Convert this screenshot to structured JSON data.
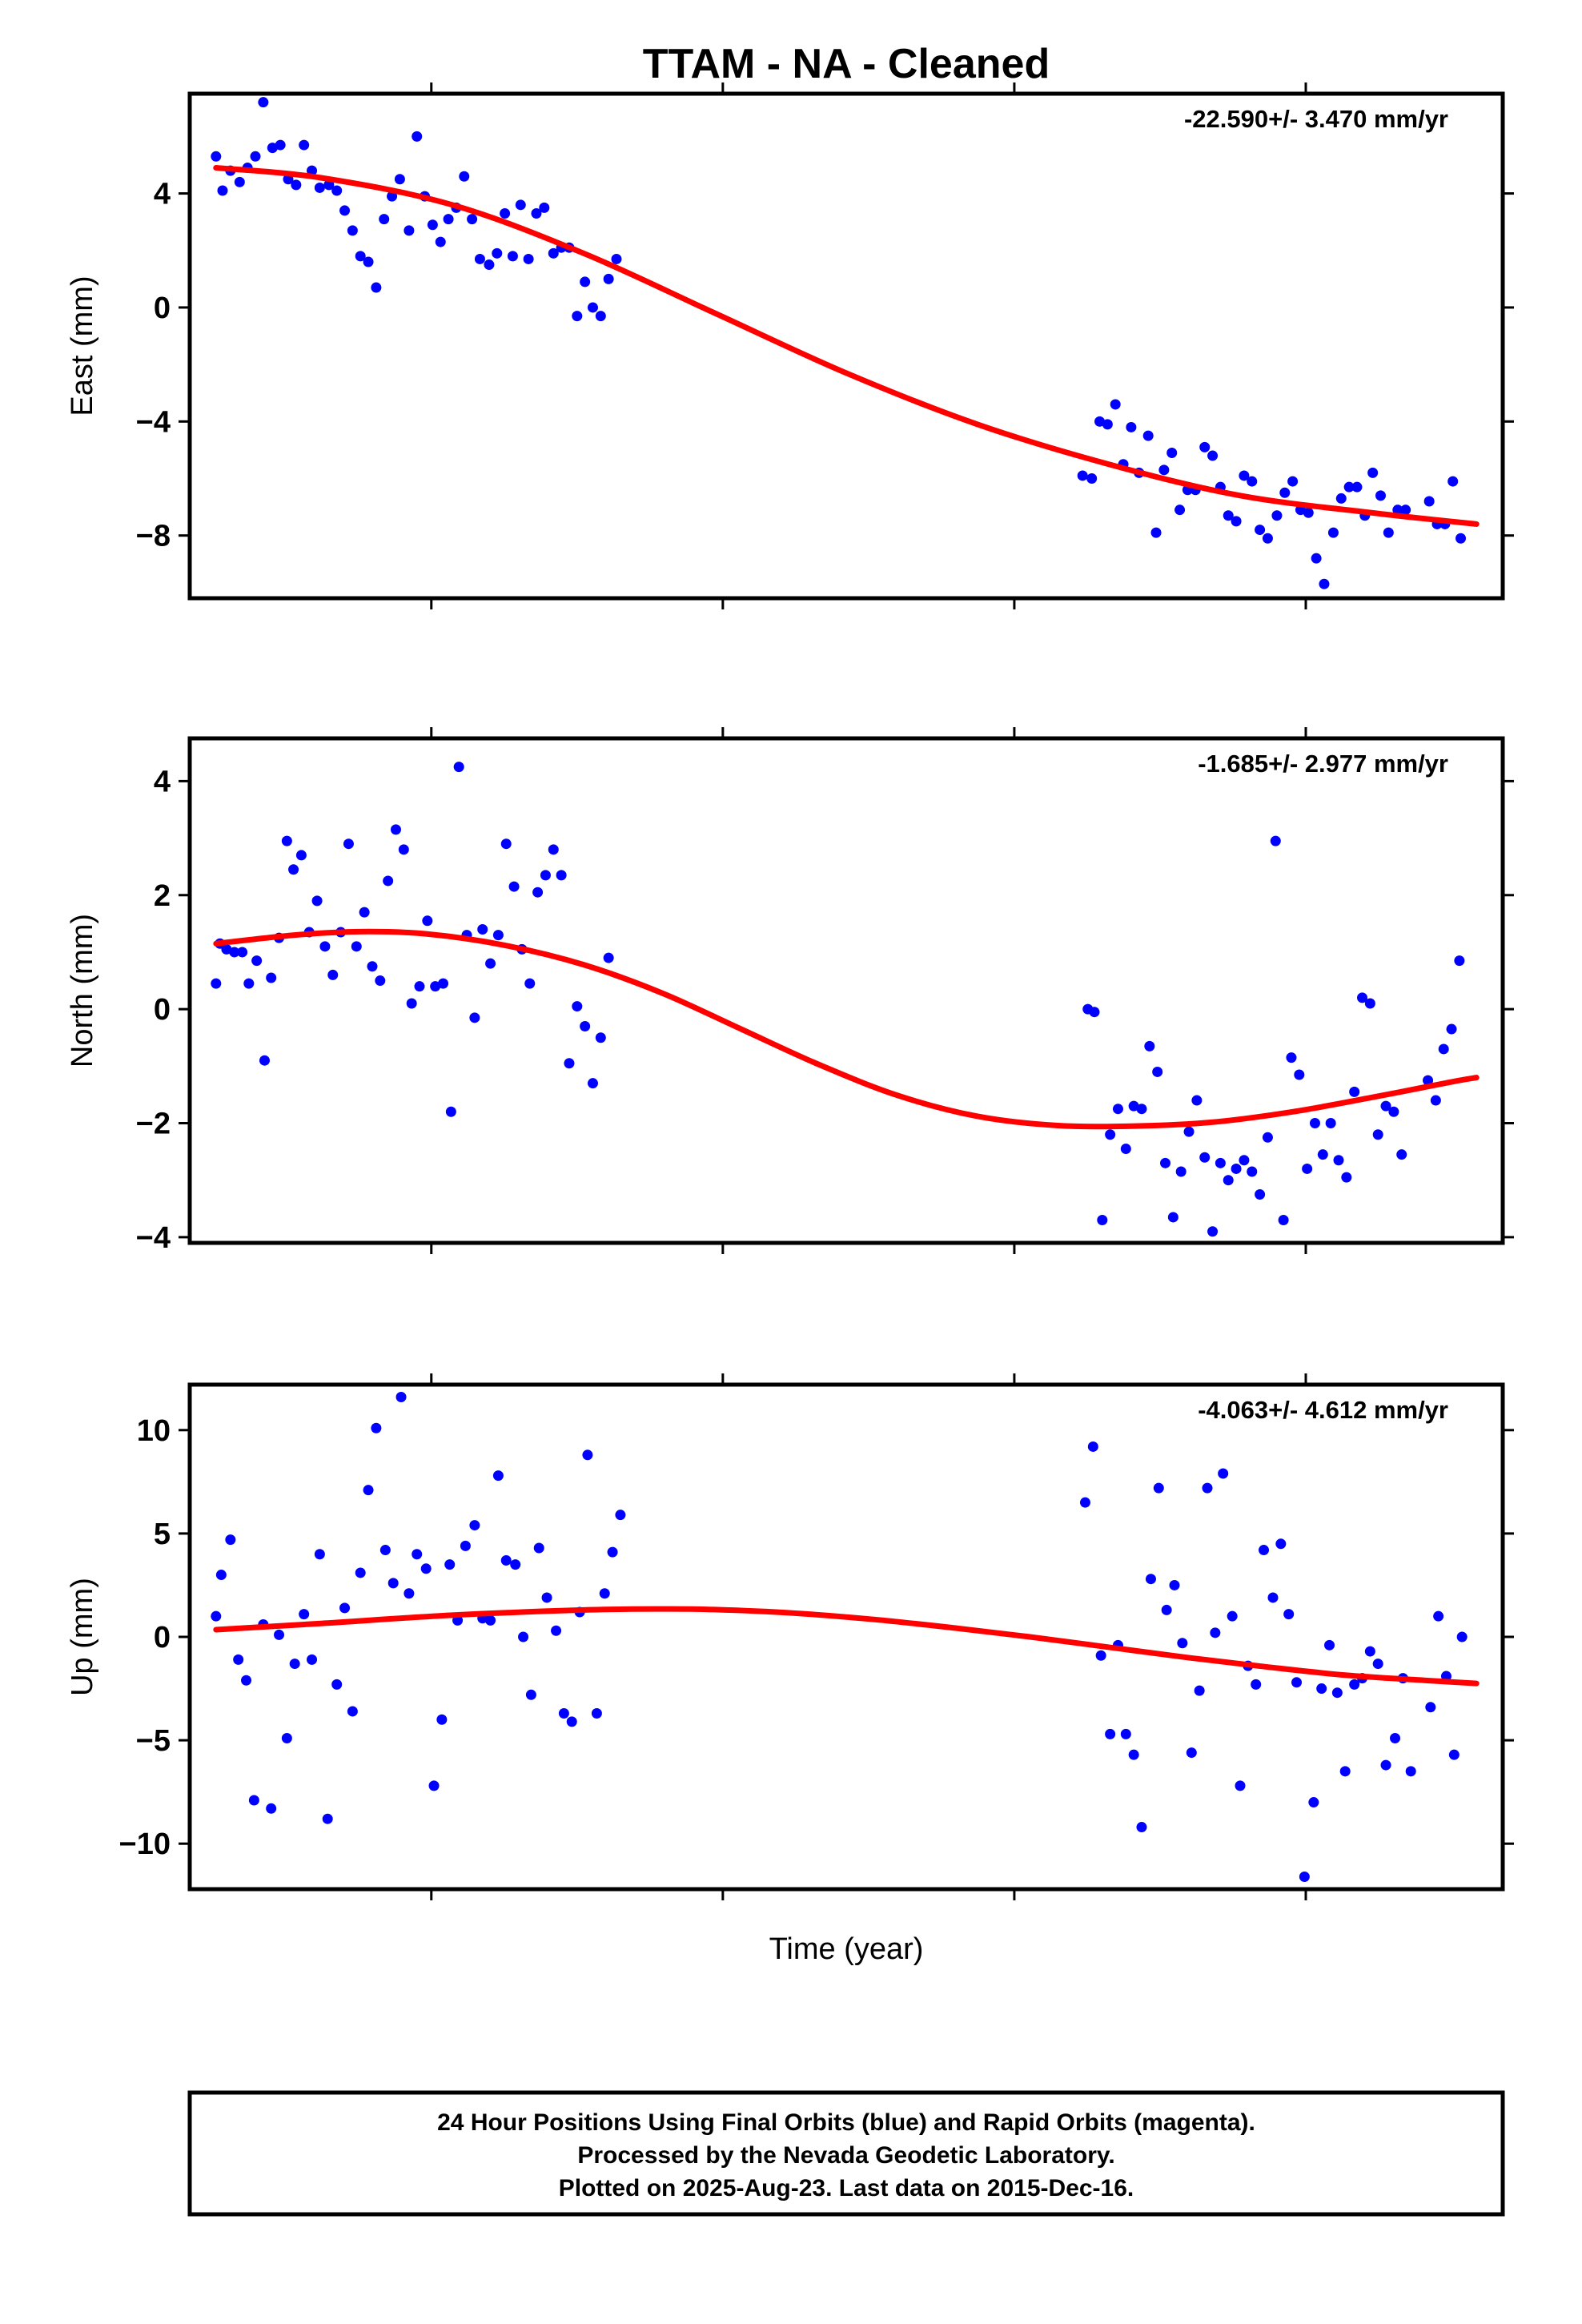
{
  "title": "TTAM  - NA - Cleaned",
  "xlabel": "Time (year)",
  "footer": {
    "line1": "24 Hour Positions Using Final Orbits (blue) and Rapid Orbits (magenta).",
    "line2": "Processed by the Nevada Geodetic Laboratory.",
    "line3": "Plotted on 2025-Aug-23. Last data on 2015-Dec-16."
  },
  "colors": {
    "data_points": "#0000ff",
    "fit_line": "#ff0000",
    "frame": "#000000"
  },
  "chart_data": [
    {
      "type": "scatter",
      "name": "east",
      "ylabel": "East (mm)",
      "rate": "-22.590+/- 3.470 mm/yr",
      "ylim": [
        -10.2,
        7.5
      ],
      "yticks": [
        4,
        0,
        -4,
        -8
      ],
      "ytick_labels": [
        "4",
        "0",
        "−4",
        "−8"
      ],
      "xlim": [
        0,
        100
      ],
      "xticks": [
        18.4,
        40.6,
        62.8,
        85
      ],
      "grid": false,
      "fit": [
        [
          2,
          4.9
        ],
        [
          10,
          4.55
        ],
        [
          20,
          3.6
        ],
        [
          30,
          1.9
        ],
        [
          40,
          -0.2
        ],
        [
          50,
          -2.3
        ],
        [
          60,
          -4.1
        ],
        [
          70,
          -5.5
        ],
        [
          80,
          -6.6
        ],
        [
          90,
          -7.2
        ],
        [
          98,
          -7.6
        ]
      ],
      "points": [
        [
          2,
          5.3
        ],
        [
          2.5,
          4.1
        ],
        [
          3.1,
          4.8
        ],
        [
          3.8,
          4.4
        ],
        [
          4.4,
          4.9
        ],
        [
          5,
          5.3
        ],
        [
          5.6,
          7.2
        ],
        [
          6.3,
          5.6
        ],
        [
          6.9,
          5.7
        ],
        [
          7.5,
          4.5
        ],
        [
          8.1,
          4.3
        ],
        [
          8.7,
          5.7
        ],
        [
          9.3,
          4.8
        ],
        [
          9.9,
          4.2
        ],
        [
          10.6,
          4.3
        ],
        [
          11.2,
          4.1
        ],
        [
          11.8,
          3.4
        ],
        [
          12.4,
          2.7
        ],
        [
          13,
          1.8
        ],
        [
          13.6,
          1.6
        ],
        [
          14.2,
          0.7
        ],
        [
          14.8,
          3.1
        ],
        [
          15.4,
          3.9
        ],
        [
          16,
          4.5
        ],
        [
          16.7,
          2.7
        ],
        [
          17.3,
          6.0
        ],
        [
          17.9,
          3.9
        ],
        [
          18.5,
          2.9
        ],
        [
          19.1,
          2.3
        ],
        [
          19.7,
          3.1
        ],
        [
          20.3,
          3.5
        ],
        [
          20.9,
          4.6
        ],
        [
          21.5,
          3.1
        ],
        [
          22.1,
          1.7
        ],
        [
          22.8,
          1.5
        ],
        [
          23.4,
          1.9
        ],
        [
          24,
          3.3
        ],
        [
          24.6,
          1.8
        ],
        [
          25.2,
          3.6
        ],
        [
          25.8,
          1.7
        ],
        [
          26.4,
          3.3
        ],
        [
          27,
          3.5
        ],
        [
          27.7,
          1.9
        ],
        [
          28.3,
          2.1
        ],
        [
          28.9,
          2.1
        ],
        [
          29.5,
          -0.3
        ],
        [
          30.1,
          0.9
        ],
        [
          30.7,
          0.0
        ],
        [
          31.3,
          -0.3
        ],
        [
          31.9,
          1.0
        ],
        [
          32.5,
          1.7
        ],
        [
          68,
          -5.9
        ],
        [
          68.7,
          -6.0
        ],
        [
          69.3,
          -4.0
        ],
        [
          69.9,
          -4.1
        ],
        [
          70.5,
          -3.4
        ],
        [
          71.1,
          -5.5
        ],
        [
          71.7,
          -4.2
        ],
        [
          72.3,
          -5.8
        ],
        [
          73,
          -4.5
        ],
        [
          73.6,
          -7.9
        ],
        [
          74.2,
          -5.7
        ],
        [
          74.8,
          -5.1
        ],
        [
          75.4,
          -7.1
        ],
        [
          76,
          -6.4
        ],
        [
          76.6,
          -6.4
        ],
        [
          77.3,
          -4.9
        ],
        [
          77.9,
          -5.2
        ],
        [
          78.5,
          -6.3
        ],
        [
          79.1,
          -7.3
        ],
        [
          79.7,
          -7.5
        ],
        [
          80.3,
          -5.9
        ],
        [
          80.9,
          -6.1
        ],
        [
          81.5,
          -7.8
        ],
        [
          82.1,
          -8.1
        ],
        [
          82.8,
          -7.3
        ],
        [
          83.4,
          -6.5
        ],
        [
          84,
          -6.1
        ],
        [
          84.6,
          -7.1
        ],
        [
          85.2,
          -7.2
        ],
        [
          85.8,
          -8.8
        ],
        [
          86.4,
          -9.7
        ],
        [
          87.1,
          -7.9
        ],
        [
          87.7,
          -6.7
        ],
        [
          88.3,
          -6.3
        ],
        [
          88.9,
          -6.3
        ],
        [
          89.5,
          -7.3
        ],
        [
          90.1,
          -5.8
        ],
        [
          90.7,
          -6.6
        ],
        [
          91.3,
          -7.9
        ],
        [
          92,
          -7.1
        ],
        [
          92.6,
          -7.1
        ],
        [
          94.4,
          -6.8
        ],
        [
          95,
          -7.6
        ],
        [
          95.6,
          -7.6
        ],
        [
          96.2,
          -6.1
        ],
        [
          96.8,
          -8.1
        ]
      ]
    },
    {
      "type": "scatter",
      "name": "north",
      "ylabel": "North (mm)",
      "rate": "-1.685+/- 2.977 mm/yr",
      "ylim": [
        -4.1,
        4.75
      ],
      "yticks": [
        4,
        2,
        0,
        -2,
        -4
      ],
      "ytick_labels": [
        "4",
        "2",
        "0",
        "−2",
        "−4"
      ],
      "xlim": [
        0,
        100
      ],
      "xticks": [
        18.4,
        40.6,
        62.8,
        85
      ],
      "grid": false,
      "fit": [
        [
          2,
          1.15
        ],
        [
          8,
          1.3
        ],
        [
          13,
          1.36
        ],
        [
          18,
          1.32
        ],
        [
          24,
          1.12
        ],
        [
          30,
          0.78
        ],
        [
          36,
          0.28
        ],
        [
          42,
          -0.35
        ],
        [
          48,
          -0.98
        ],
        [
          54,
          -1.52
        ],
        [
          60,
          -1.88
        ],
        [
          66,
          -2.04
        ],
        [
          72,
          -2.05
        ],
        [
          78,
          -1.98
        ],
        [
          84,
          -1.8
        ],
        [
          90,
          -1.55
        ],
        [
          96,
          -1.28
        ],
        [
          98,
          -1.2
        ]
      ],
      "points": [
        [
          2,
          0.45
        ],
        [
          2.3,
          1.15
        ],
        [
          2.8,
          1.05
        ],
        [
          3.4,
          1.0
        ],
        [
          4,
          1.0
        ],
        [
          4.5,
          0.45
        ],
        [
          5.1,
          0.85
        ],
        [
          5.7,
          -0.9
        ],
        [
          6.2,
          0.55
        ],
        [
          6.8,
          1.25
        ],
        [
          7.4,
          2.95
        ],
        [
          7.9,
          2.45
        ],
        [
          8.5,
          2.7
        ],
        [
          9.1,
          1.35
        ],
        [
          9.7,
          1.9
        ],
        [
          10.3,
          1.1
        ],
        [
          10.9,
          0.6
        ],
        [
          11.5,
          1.35
        ],
        [
          12.1,
          2.9
        ],
        [
          12.7,
          1.1
        ],
        [
          13.3,
          1.7
        ],
        [
          13.9,
          0.75
        ],
        [
          14.5,
          0.5
        ],
        [
          15.1,
          2.25
        ],
        [
          15.7,
          3.15
        ],
        [
          16.3,
          2.8
        ],
        [
          16.9,
          0.1
        ],
        [
          17.5,
          0.4
        ],
        [
          18.1,
          1.55
        ],
        [
          18.7,
          0.4
        ],
        [
          19.3,
          0.45
        ],
        [
          19.9,
          -1.8
        ],
        [
          20.5,
          4.25
        ],
        [
          21.1,
          1.3
        ],
        [
          21.7,
          -0.15
        ],
        [
          22.3,
          1.4
        ],
        [
          22.9,
          0.8
        ],
        [
          23.5,
          1.3
        ],
        [
          24.1,
          2.9
        ],
        [
          24.7,
          2.15
        ],
        [
          25.3,
          1.05
        ],
        [
          25.9,
          0.45
        ],
        [
          26.5,
          2.05
        ],
        [
          27.1,
          2.35
        ],
        [
          27.7,
          2.8
        ],
        [
          28.3,
          2.35
        ],
        [
          28.9,
          -0.95
        ],
        [
          29.5,
          0.05
        ],
        [
          30.1,
          -0.3
        ],
        [
          30.7,
          -1.3
        ],
        [
          31.3,
          -0.5
        ],
        [
          31.9,
          0.9
        ],
        [
          68.4,
          0.0
        ],
        [
          68.9,
          -0.05
        ],
        [
          69.5,
          -3.7
        ],
        [
          70.1,
          -2.2
        ],
        [
          70.7,
          -1.75
        ],
        [
          71.3,
          -2.45
        ],
        [
          71.9,
          -1.7
        ],
        [
          72.5,
          -1.75
        ],
        [
          73.1,
          -0.65
        ],
        [
          73.7,
          -1.1
        ],
        [
          74.3,
          -2.7
        ],
        [
          74.9,
          -3.65
        ],
        [
          75.5,
          -2.85
        ],
        [
          76.1,
          -2.15
        ],
        [
          76.7,
          -1.6
        ],
        [
          77.3,
          -2.6
        ],
        [
          77.9,
          -3.9
        ],
        [
          78.5,
          -2.7
        ],
        [
          79.1,
          -3.0
        ],
        [
          79.7,
          -2.8
        ],
        [
          80.3,
          -2.65
        ],
        [
          80.9,
          -2.85
        ],
        [
          81.5,
          -3.25
        ],
        [
          82.1,
          -2.25
        ],
        [
          82.7,
          2.95
        ],
        [
          83.3,
          -3.7
        ],
        [
          83.9,
          -0.85
        ],
        [
          84.5,
          -1.15
        ],
        [
          85.1,
          -2.8
        ],
        [
          85.7,
          -2.0
        ],
        [
          86.3,
          -2.55
        ],
        [
          86.9,
          -2.0
        ],
        [
          87.5,
          -2.65
        ],
        [
          88.1,
          -2.95
        ],
        [
          88.7,
          -1.45
        ],
        [
          89.3,
          0.2
        ],
        [
          89.9,
          0.1
        ],
        [
          90.5,
          -2.2
        ],
        [
          91.1,
          -1.7
        ],
        [
          91.7,
          -1.8
        ],
        [
          92.3,
          -2.55
        ],
        [
          94.3,
          -1.25
        ],
        [
          94.9,
          -1.6
        ],
        [
          95.5,
          -0.7
        ],
        [
          96.1,
          -0.35
        ],
        [
          96.7,
          0.85
        ]
      ]
    },
    {
      "type": "scatter",
      "name": "up",
      "ylabel": "Up (mm)",
      "rate": "-4.063+/- 4.612 mm/yr",
      "ylim": [
        -12.2,
        12.2
      ],
      "yticks": [
        10,
        5,
        0,
        -5,
        -10
      ],
      "ytick_labels": [
        "10",
        "5",
        "0",
        "−5",
        "−10"
      ],
      "xlim": [
        0,
        100
      ],
      "xticks": [
        18.4,
        40.6,
        62.8,
        85
      ],
      "grid": false,
      "fit": [
        [
          2,
          0.35
        ],
        [
          10,
          0.65
        ],
        [
          20,
          1.05
        ],
        [
          30,
          1.3
        ],
        [
          36,
          1.35
        ],
        [
          40,
          1.32
        ],
        [
          46,
          1.15
        ],
        [
          52,
          0.85
        ],
        [
          58,
          0.45
        ],
        [
          64,
          0.0
        ],
        [
          70,
          -0.5
        ],
        [
          76,
          -1.0
        ],
        [
          82,
          -1.45
        ],
        [
          88,
          -1.85
        ],
        [
          94,
          -2.1
        ],
        [
          98,
          -2.25
        ]
      ],
      "points": [
        [
          2,
          1.0
        ],
        [
          2.4,
          3.0
        ],
        [
          3.1,
          4.7
        ],
        [
          3.7,
          -1.1
        ],
        [
          4.3,
          -2.1
        ],
        [
          4.9,
          -7.9
        ],
        [
          5.6,
          0.6
        ],
        [
          6.2,
          -8.3
        ],
        [
          6.8,
          0.1
        ],
        [
          7.4,
          -4.9
        ],
        [
          8,
          -1.3
        ],
        [
          8.7,
          1.1
        ],
        [
          9.3,
          -1.1
        ],
        [
          9.9,
          4.0
        ],
        [
          10.5,
          -8.8
        ],
        [
          11.2,
          -2.3
        ],
        [
          11.8,
          1.4
        ],
        [
          12.4,
          -3.6
        ],
        [
          13,
          3.1
        ],
        [
          13.6,
          7.1
        ],
        [
          14.2,
          10.1
        ],
        [
          14.9,
          4.2
        ],
        [
          15.5,
          2.6
        ],
        [
          16.1,
          11.6
        ],
        [
          16.7,
          2.1
        ],
        [
          17.3,
          4.0
        ],
        [
          18,
          3.3
        ],
        [
          18.6,
          -7.2
        ],
        [
          19.2,
          -4.0
        ],
        [
          19.8,
          3.5
        ],
        [
          20.4,
          0.8
        ],
        [
          21,
          4.4
        ],
        [
          21.7,
          5.4
        ],
        [
          22.3,
          0.9
        ],
        [
          22.9,
          0.8
        ],
        [
          23.5,
          7.8
        ],
        [
          24.1,
          3.7
        ],
        [
          24.8,
          3.5
        ],
        [
          25.4,
          0.0
        ],
        [
          26,
          -2.8
        ],
        [
          26.6,
          4.3
        ],
        [
          27.2,
          1.9
        ],
        [
          27.9,
          0.3
        ],
        [
          28.5,
          -3.7
        ],
        [
          29.1,
          -4.1
        ],
        [
          29.7,
          1.2
        ],
        [
          30.3,
          8.8
        ],
        [
          31,
          -3.7
        ],
        [
          31.6,
          2.1
        ],
        [
          32.2,
          4.1
        ],
        [
          32.8,
          5.9
        ],
        [
          68.2,
          6.5
        ],
        [
          68.8,
          9.2
        ],
        [
          69.4,
          -0.9
        ],
        [
          70.1,
          -4.7
        ],
        [
          70.7,
          -0.4
        ],
        [
          71.3,
          -4.7
        ],
        [
          71.9,
          -5.7
        ],
        [
          72.5,
          -9.2
        ],
        [
          73.2,
          2.8
        ],
        [
          73.8,
          7.2
        ],
        [
          74.4,
          1.3
        ],
        [
          75,
          2.5
        ],
        [
          75.6,
          -0.3
        ],
        [
          76.3,
          -5.6
        ],
        [
          76.9,
          -2.6
        ],
        [
          77.5,
          7.2
        ],
        [
          78.1,
          0.2
        ],
        [
          78.7,
          7.9
        ],
        [
          79.4,
          1.0
        ],
        [
          80,
          -7.2
        ],
        [
          80.6,
          -1.4
        ],
        [
          81.2,
          -2.3
        ],
        [
          81.8,
          4.2
        ],
        [
          82.5,
          1.9
        ],
        [
          83.1,
          4.5
        ],
        [
          83.7,
          1.1
        ],
        [
          84.3,
          -2.2
        ],
        [
          84.9,
          -11.6
        ],
        [
          85.6,
          -8.0
        ],
        [
          86.2,
          -2.5
        ],
        [
          86.8,
          -0.4
        ],
        [
          87.4,
          -2.7
        ],
        [
          88,
          -6.5
        ],
        [
          88.7,
          -2.3
        ],
        [
          89.3,
          -2.0
        ],
        [
          89.9,
          -0.7
        ],
        [
          90.5,
          -1.3
        ],
        [
          91.1,
          -6.2
        ],
        [
          91.8,
          -4.9
        ],
        [
          92.4,
          -2.0
        ],
        [
          93,
          -6.5
        ],
        [
          94.5,
          -3.4
        ],
        [
          95.1,
          1.0
        ],
        [
          95.7,
          -1.9
        ],
        [
          96.3,
          -5.7
        ],
        [
          96.9,
          0.0
        ]
      ]
    }
  ]
}
